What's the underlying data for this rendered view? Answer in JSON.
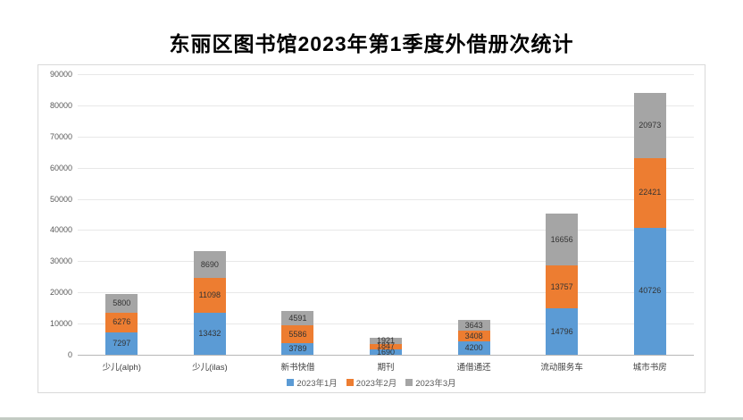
{
  "page": {
    "title": "东丽区图书馆2023年第1季度外借册次统计"
  },
  "chart_data": {
    "type": "bar",
    "stacked": true,
    "title": "东丽区图书馆2023年第1季度外借册次统计",
    "categories": [
      "少儿(alph)",
      "少儿(ilas)",
      "新书快借",
      "期刊",
      "通借通还",
      "流动服务车",
      "城市书房"
    ],
    "series": [
      {
        "name": "2023年1月",
        "color": "#5B9BD5",
        "values": [
          7297,
          13432,
          3789,
          1690,
          4200,
          14796,
          40726
        ]
      },
      {
        "name": "2023年2月",
        "color": "#ED7D31",
        "values": [
          6276,
          11098,
          5586,
          1847,
          3408,
          13757,
          22421
        ]
      },
      {
        "name": "2023年3月",
        "color": "#A5A5A5",
        "values": [
          5800,
          8690,
          4591,
          1921,
          3643,
          16656,
          20973
        ]
      }
    ],
    "xlabel": "",
    "ylabel": "",
    "ylim": [
      0,
      90000
    ],
    "ytick_step": 10000,
    "grid": true,
    "data_labels": true,
    "legend_position": "bottom"
  }
}
